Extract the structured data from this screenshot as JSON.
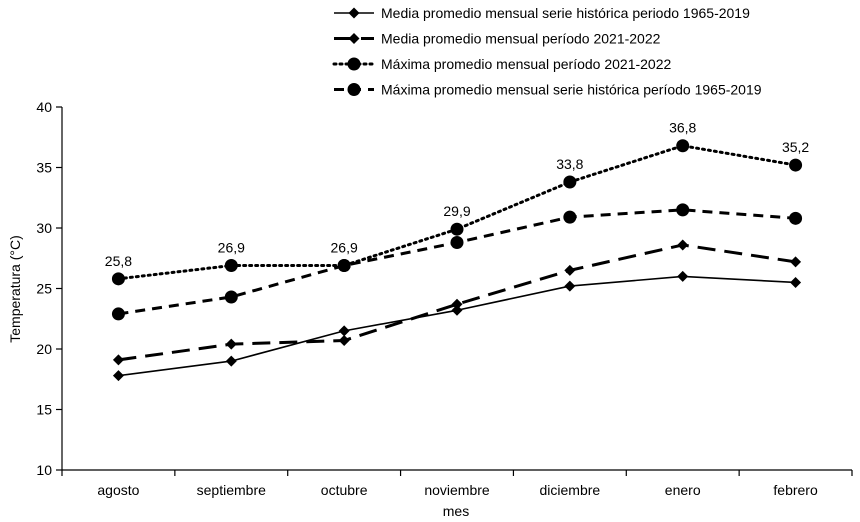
{
  "chart_data": {
    "type": "line",
    "xlabel": "mes",
    "ylabel": "Temperatura (°C)",
    "ylim": [
      10,
      40
    ],
    "yticks": [
      "10",
      "15",
      "20",
      "25",
      "30",
      "35",
      "40"
    ],
    "categories": [
      "agosto",
      "septiembre",
      "octubre",
      "noviembre",
      "diciembre",
      "enero",
      "febrero"
    ],
    "grid": false,
    "legend_position": "top-right",
    "series": [
      {
        "name": "Media promedio mensual serie histórica periodo 1965-2019",
        "style": "solid",
        "marker": "diamond",
        "values": [
          17.8,
          19.0,
          21.5,
          23.2,
          25.2,
          26.0,
          25.5
        ]
      },
      {
        "name": "Media promedio mensual período 2021-2022",
        "style": "long-dash",
        "marker": "diamond",
        "values": [
          19.1,
          20.4,
          20.7,
          23.7,
          26.5,
          28.6,
          27.2
        ]
      },
      {
        "name": "Máxima promedio mensual período 2021-2022",
        "style": "dotted",
        "marker": "circle",
        "values": [
          25.8,
          26.9,
          26.9,
          29.9,
          33.8,
          36.8,
          35.2
        ],
        "labels": [
          "25,8",
          "26,9",
          "26,9",
          "29,9",
          "33,8",
          "36,8",
          "35,2"
        ]
      },
      {
        "name": "Máxima promedio mensual serie histórica período 1965-2019",
        "style": "dashed",
        "marker": "circle",
        "values": [
          22.9,
          24.3,
          26.9,
          28.8,
          30.9,
          31.5,
          30.8
        ]
      }
    ]
  }
}
